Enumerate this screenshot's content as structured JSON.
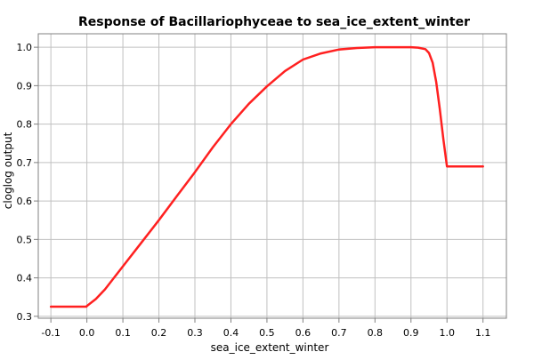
{
  "chart_data": {
    "type": "line",
    "title": "Response of Bacillariophyceae to sea_ice_extent_winter",
    "xlabel": "sea_ice_extent_winter",
    "ylabel": "cloglog output",
    "xlim": [
      -0.135,
      1.165
    ],
    "ylim": [
      0.295,
      1.035
    ],
    "x_ticks": [
      -0.1,
      0.0,
      0.1,
      0.2,
      0.3,
      0.4,
      0.5,
      0.6,
      0.7,
      0.8,
      0.9,
      1.0,
      1.1
    ],
    "x_tick_labels": [
      "-0.1",
      "0.0",
      "0.1",
      "0.2",
      "0.3",
      "0.4",
      "0.5",
      "0.6",
      "0.7",
      "0.8",
      "0.9",
      "1.0",
      "1.1"
    ],
    "y_ticks": [
      0.3,
      0.4,
      0.5,
      0.6,
      0.7,
      0.8,
      0.9,
      1.0
    ],
    "y_tick_labels": [
      "0.3",
      "0.4",
      "0.5",
      "0.6",
      "0.7",
      "0.8",
      "0.9",
      "1.0"
    ],
    "grid": true,
    "series": [
      {
        "color": "#ff2020",
        "x": [
          -0.1,
          -0.05,
          -0.001,
          0.0,
          0.025,
          0.05,
          0.1,
          0.15,
          0.2,
          0.25,
          0.3,
          0.35,
          0.4,
          0.45,
          0.5,
          0.55,
          0.6,
          0.65,
          0.7,
          0.75,
          0.8,
          0.85,
          0.9,
          0.92,
          0.94,
          0.95,
          0.96,
          0.97,
          0.98,
          0.99,
          1.0,
          1.005,
          1.05,
          1.1
        ],
        "y": [
          0.325,
          0.325,
          0.325,
          0.327,
          0.345,
          0.37,
          0.43,
          0.49,
          0.55,
          0.613,
          0.675,
          0.74,
          0.8,
          0.853,
          0.898,
          0.938,
          0.968,
          0.984,
          0.994,
          0.998,
          1.0,
          1.0,
          1.0,
          0.999,
          0.995,
          0.985,
          0.96,
          0.91,
          0.84,
          0.76,
          0.69,
          0.69,
          0.69,
          0.69
        ]
      }
    ]
  }
}
